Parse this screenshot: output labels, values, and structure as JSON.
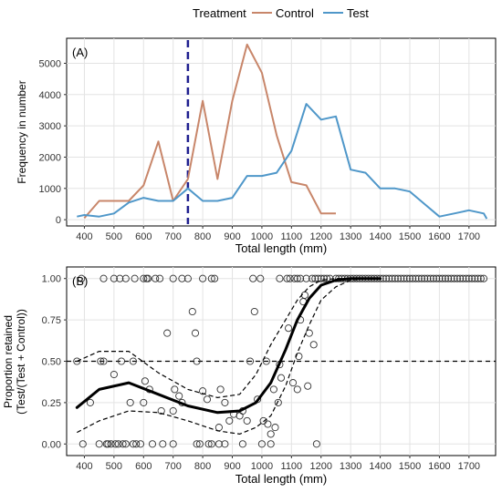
{
  "legend": {
    "title": "Treatment",
    "items": [
      {
        "label": "Control",
        "color": "#c8866a"
      },
      {
        "label": "Test",
        "color": "#4f97c9"
      }
    ]
  },
  "chart_data": [
    {
      "type": "line",
      "panel_label": "(A)",
      "xlabel": "Total length (mm)",
      "ylabel": "Frequency in number",
      "xlim": [
        340,
        1790
      ],
      "ylim": [
        -200,
        5800
      ],
      "x_ticks": [
        400,
        500,
        600,
        700,
        800,
        900,
        1000,
        1100,
        1200,
        1300,
        1400,
        1500,
        1600,
        1700
      ],
      "y_ticks": [
        0,
        1000,
        2000,
        3000,
        4000,
        5000
      ],
      "grid": true,
      "series": [
        {
          "name": "Control",
          "color": "#c8866a",
          "x": [
            400,
            450,
            500,
            550,
            600,
            650,
            700,
            750,
            800,
            850,
            900,
            950,
            1000,
            1050,
            1100,
            1150,
            1200,
            1250
          ],
          "y": [
            50,
            600,
            600,
            600,
            1100,
            2500,
            600,
            1300,
            3800,
            1300,
            3800,
            5600,
            4700,
            2700,
            1200,
            1100,
            200,
            200
          ]
        },
        {
          "name": "Test",
          "color": "#4f97c9",
          "x": [
            375,
            400,
            450,
            500,
            550,
            600,
            650,
            700,
            750,
            800,
            850,
            900,
            950,
            1000,
            1050,
            1100,
            1150,
            1200,
            1250,
            1300,
            1350,
            1400,
            1450,
            1500,
            1550,
            1600,
            1650,
            1700,
            1750,
            1760
          ],
          "y": [
            100,
            150,
            100,
            200,
            550,
            700,
            600,
            600,
            1000,
            600,
            600,
            700,
            1400,
            1400,
            1500,
            2200,
            3700,
            3200,
            3300,
            1600,
            1500,
            1000,
            1000,
            900,
            500,
            100,
            200,
            300,
            200,
            30
          ]
        }
      ],
      "reference_line": {
        "x": 750,
        "orientation": "vertical",
        "style": "dashed",
        "color": "#1f1f8f"
      }
    },
    {
      "type": "scatter",
      "panel_label": "(B)",
      "xlabel": "Total length (mm)",
      "ylabel_line1": "Proportion retained",
      "ylabel_line2": "(Test/(Test + Control))",
      "xlim": [
        340,
        1790
      ],
      "ylim": [
        -0.07,
        1.07
      ],
      "x_ticks": [
        400,
        500,
        600,
        700,
        800,
        900,
        1000,
        1100,
        1200,
        1300,
        1400,
        1500,
        1600,
        1700
      ],
      "y_ticks": [
        "0.00",
        "0.25",
        "0.50",
        "0.75",
        "1.00"
      ],
      "grid": true,
      "reference_line": {
        "y": 0.5,
        "orientation": "horizontal",
        "style": "dashed",
        "color": "#000000"
      },
      "points": [
        [
          390,
          1.0
        ],
        [
          465,
          1.0
        ],
        [
          500,
          1.0
        ],
        [
          520,
          1.0
        ],
        [
          540,
          1.0
        ],
        [
          570,
          1.0
        ],
        [
          600,
          1.0
        ],
        [
          610,
          1.0
        ],
        [
          615,
          1.0
        ],
        [
          640,
          1.0
        ],
        [
          655,
          1.0
        ],
        [
          700,
          1.0
        ],
        [
          730,
          1.0
        ],
        [
          750,
          1.0
        ],
        [
          800,
          1.0
        ],
        [
          830,
          1.0
        ],
        [
          840,
          1.0
        ],
        [
          970,
          1.0
        ],
        [
          995,
          1.0
        ],
        [
          1060,
          1.0
        ],
        [
          1085,
          1.0
        ],
        [
          1095,
          1.0
        ],
        [
          1110,
          1.0
        ],
        [
          1120,
          1.0
        ],
        [
          1130,
          1.0
        ],
        [
          1150,
          1.0
        ],
        [
          1170,
          1.0
        ],
        [
          1180,
          1.0
        ],
        [
          1190,
          1.0
        ],
        [
          1200,
          1.0
        ],
        [
          1210,
          1.0
        ],
        [
          1220,
          1.0
        ],
        [
          1230,
          1.0
        ],
        [
          1250,
          1.0
        ],
        [
          1260,
          1.0
        ],
        [
          1270,
          1.0
        ],
        [
          1280,
          1.0
        ],
        [
          1290,
          1.0
        ],
        [
          1300,
          1.0
        ],
        [
          1310,
          1.0
        ],
        [
          1320,
          1.0
        ],
        [
          1330,
          1.0
        ],
        [
          1340,
          1.0
        ],
        [
          1350,
          1.0
        ],
        [
          1360,
          1.0
        ],
        [
          1370,
          1.0
        ],
        [
          1380,
          1.0
        ],
        [
          1390,
          1.0
        ],
        [
          1400,
          1.0
        ],
        [
          1410,
          1.0
        ],
        [
          1420,
          1.0
        ],
        [
          1430,
          1.0
        ],
        [
          1440,
          1.0
        ],
        [
          1450,
          1.0
        ],
        [
          1460,
          1.0
        ],
        [
          1470,
          1.0
        ],
        [
          1480,
          1.0
        ],
        [
          1490,
          1.0
        ],
        [
          1500,
          1.0
        ],
        [
          1510,
          1.0
        ],
        [
          1520,
          1.0
        ],
        [
          1530,
          1.0
        ],
        [
          1540,
          1.0
        ],
        [
          1550,
          1.0
        ],
        [
          1560,
          1.0
        ],
        [
          1570,
          1.0
        ],
        [
          1580,
          1.0
        ],
        [
          1590,
          1.0
        ],
        [
          1600,
          1.0
        ],
        [
          1610,
          1.0
        ],
        [
          1620,
          1.0
        ],
        [
          1630,
          1.0
        ],
        [
          1640,
          1.0
        ],
        [
          1650,
          1.0
        ],
        [
          1660,
          1.0
        ],
        [
          1670,
          1.0
        ],
        [
          1680,
          1.0
        ],
        [
          1690,
          1.0
        ],
        [
          1700,
          1.0
        ],
        [
          1710,
          1.0
        ],
        [
          1720,
          1.0
        ],
        [
          1730,
          1.0
        ],
        [
          1740,
          1.0
        ],
        [
          1750,
          1.0
        ],
        [
          375,
          0.5
        ],
        [
          420,
          0.25
        ],
        [
          455,
          0.5
        ],
        [
          465,
          0.5
        ],
        [
          500,
          0.42
        ],
        [
          525,
          0.5
        ],
        [
          555,
          0.25
        ],
        [
          565,
          0.5
        ],
        [
          600,
          0.25
        ],
        [
          605,
          0.38
        ],
        [
          620,
          0.33
        ],
        [
          660,
          0.2
        ],
        [
          680,
          0.67
        ],
        [
          700,
          0.2
        ],
        [
          705,
          0.33
        ],
        [
          720,
          0.29
        ],
        [
          730,
          0.25
        ],
        [
          765,
          0.8
        ],
        [
          775,
          0.67
        ],
        [
          780,
          0.5
        ],
        [
          800,
          0.32
        ],
        [
          815,
          0.27
        ],
        [
          855,
          0.1
        ],
        [
          860,
          0.33
        ],
        [
          875,
          0.25
        ],
        [
          890,
          0.14
        ],
        [
          905,
          0.18
        ],
        [
          925,
          0.17
        ],
        [
          935,
          0.2
        ],
        [
          950,
          0.14
        ],
        [
          960,
          0.5
        ],
        [
          975,
          0.8
        ],
        [
          985,
          0.27
        ],
        [
          1005,
          0.14
        ],
        [
          1015,
          0.5
        ],
        [
          1020,
          0.12
        ],
        [
          1030,
          0.06
        ],
        [
          1040,
          0.33
        ],
        [
          1045,
          0.1
        ],
        [
          1055,
          0.25
        ],
        [
          1060,
          0.48
        ],
        [
          1065,
          0.4
        ],
        [
          1090,
          0.7
        ],
        [
          1105,
          0.37
        ],
        [
          1120,
          0.33
        ],
        [
          1125,
          0.53
        ],
        [
          1130,
          0.75
        ],
        [
          1140,
          0.86
        ],
        [
          1145,
          0.9
        ],
        [
          1155,
          0.35
        ],
        [
          1160,
          0.67
        ],
        [
          1175,
          0.6
        ],
        [
          1185,
          0.0
        ],
        [
          395,
          0.0
        ],
        [
          450,
          0.0
        ],
        [
          475,
          0.0
        ],
        [
          480,
          0.0
        ],
        [
          490,
          0.0
        ],
        [
          505,
          0.0
        ],
        [
          515,
          0.0
        ],
        [
          530,
          0.0
        ],
        [
          540,
          0.0
        ],
        [
          565,
          0.0
        ],
        [
          575,
          0.0
        ],
        [
          590,
          0.0
        ],
        [
          630,
          0.0
        ],
        [
          665,
          0.0
        ],
        [
          700,
          0.0
        ],
        [
          780,
          0.0
        ],
        [
          790,
          0.0
        ],
        [
          820,
          0.0
        ],
        [
          830,
          0.0
        ],
        [
          855,
          0.0
        ],
        [
          875,
          0.0
        ],
        [
          935,
          0.0
        ],
        [
          1000,
          0.0
        ],
        [
          1030,
          0.0
        ]
      ],
      "fit": {
        "x": [
          375,
          450,
          550,
          650,
          750,
          850,
          925,
          980,
          1030,
          1080,
          1120,
          1160,
          1200,
          1250,
          1300,
          1350,
          1400
        ],
        "y": [
          0.22,
          0.33,
          0.37,
          0.3,
          0.23,
          0.19,
          0.2,
          0.25,
          0.37,
          0.57,
          0.75,
          0.88,
          0.96,
          0.99,
          1.0,
          1.0,
          1.0
        ],
        "upper": [
          0.5,
          0.56,
          0.56,
          0.43,
          0.33,
          0.28,
          0.3,
          0.42,
          0.6,
          0.75,
          0.87,
          0.95,
          0.99,
          1.0,
          1.0,
          1.0,
          1.0
        ],
        "lower": [
          0.07,
          0.14,
          0.2,
          0.19,
          0.14,
          0.08,
          0.06,
          0.1,
          0.17,
          0.35,
          0.55,
          0.72,
          0.87,
          0.95,
          0.99,
          1.0,
          1.0
        ]
      }
    }
  ]
}
